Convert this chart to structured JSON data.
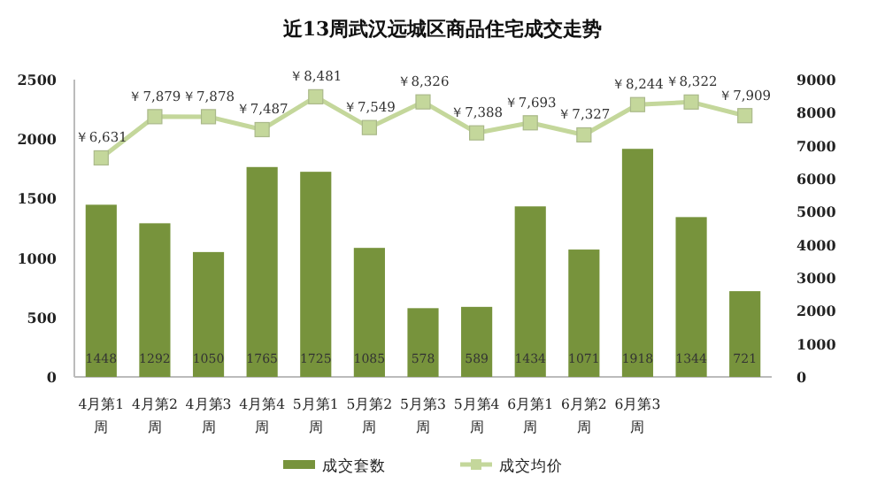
{
  "chart_data": {
    "type": "bar",
    "title": "近13周武汉远城区商品住宅成交走势",
    "categories": [
      "4月第1周",
      "4月第2周",
      "4月第3周",
      "4月第4周",
      "5月第1周",
      "5月第2周",
      "5月第3周",
      "5月第4周",
      "6月第1周",
      "6月第2周",
      "6月第3周",
      null,
      null
    ],
    "series": [
      {
        "name": "成交套数",
        "color": "#77933c",
        "values": [
          1448,
          1292,
          1050,
          1765,
          1725,
          1085,
          578,
          589,
          1434,
          1071,
          1918,
          1344,
          721
        ],
        "value_labels": [
          "1448",
          "1292",
          "1050",
          "1765",
          "1725",
          "1085",
          "578",
          "589",
          "1434",
          "1071",
          "1918",
          "1344",
          "721"
        ]
      },
      {
        "name": "成交均价",
        "type": "line",
        "axis": "y2",
        "color": "#c4d79b",
        "marker": "square",
        "values": [
          6631,
          7879,
          7878,
          7487,
          8481,
          7549,
          8326,
          7388,
          7693,
          7327,
          8244,
          8322,
          7909
        ],
        "value_labels": [
          "￥6,631",
          "￥7,879",
          "￥7,878",
          "￥7,487",
          "￥8,481",
          "￥7,549",
          "￥8,326",
          "￥7,388",
          "￥7,693",
          "￥7,327",
          "￥8,244",
          "￥8,322",
          "￥7,909"
        ]
      }
    ],
    "ylim": [
      0,
      2500
    ],
    "yticks": [
      0,
      500,
      1000,
      1500,
      2000,
      2500
    ],
    "y2lim": [
      0,
      9000
    ],
    "y2ticks": [
      0,
      1000,
      2000,
      3000,
      4000,
      5000,
      6000,
      7000,
      8000,
      9000
    ],
    "grid": false,
    "legend": "bottom"
  }
}
